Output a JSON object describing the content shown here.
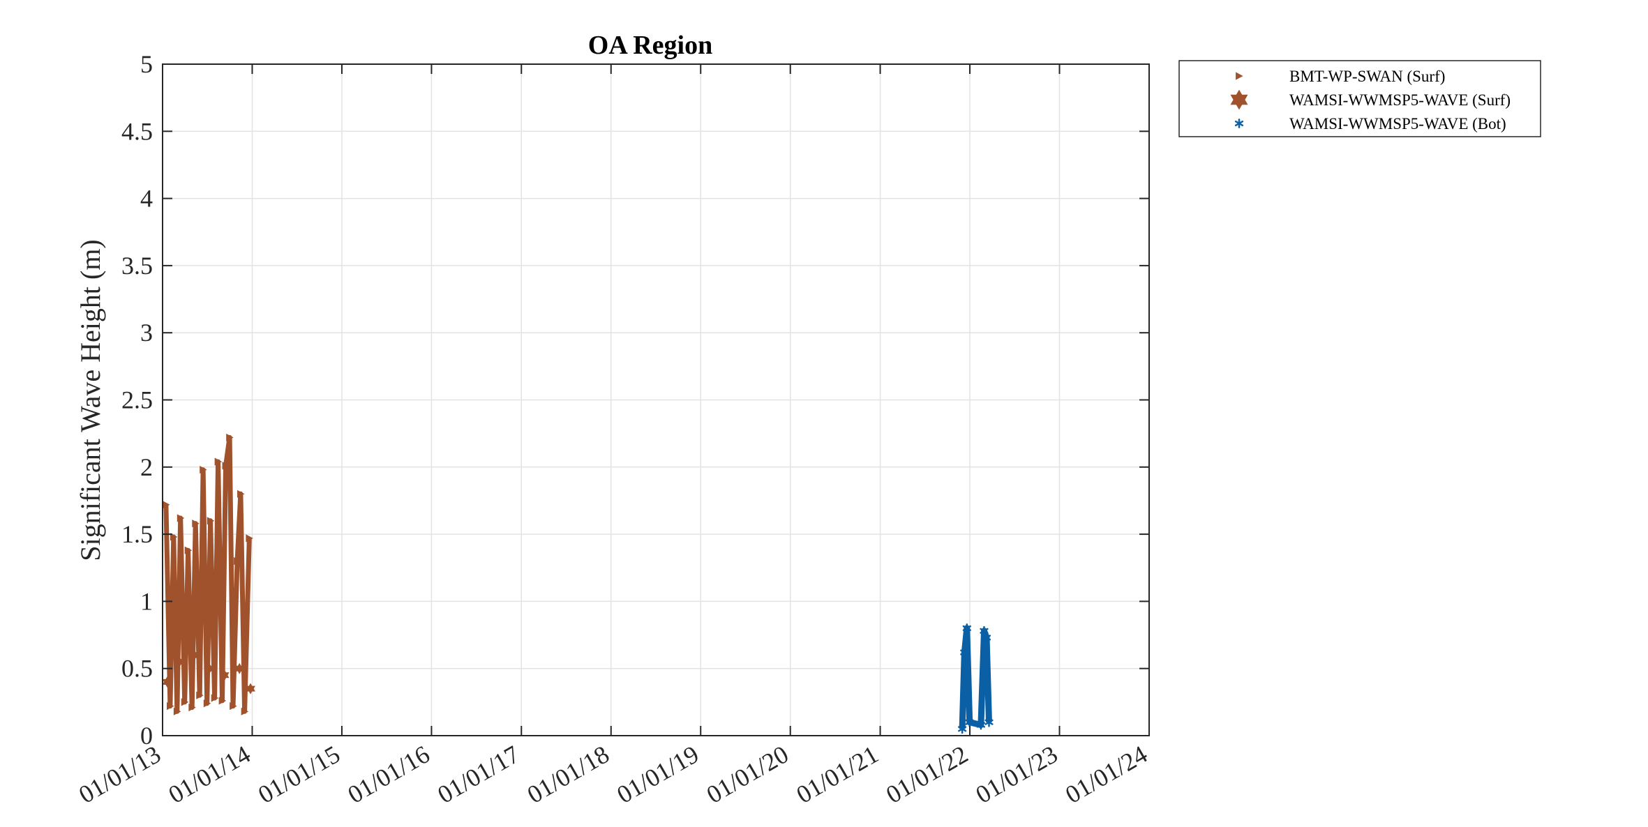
{
  "chart_data": {
    "type": "scatter",
    "title": "OA Region",
    "xlabel": "",
    "ylabel": "Significant Wave Height (m)",
    "x_tick_labels": [
      "01/01/13",
      "01/01/14",
      "01/01/15",
      "01/01/16",
      "01/01/17",
      "01/01/18",
      "01/01/19",
      "01/01/20",
      "01/01/21",
      "01/01/22",
      "01/01/23",
      "01/01/24"
    ],
    "x_tick_dates": [
      "2013-01-01",
      "2014-01-01",
      "2015-01-01",
      "2016-01-01",
      "2017-01-01",
      "2018-01-01",
      "2019-01-01",
      "2020-01-01",
      "2021-01-01",
      "2022-01-01",
      "2023-01-01",
      "2024-01-01"
    ],
    "xlim": [
      "2013-01-01",
      "2024-01-01"
    ],
    "y_tick_labels": [
      "0",
      "0.5",
      "1",
      "1.5",
      "2",
      "2.5",
      "3",
      "3.5",
      "4",
      "4.5",
      "5"
    ],
    "ylim": [
      0,
      5
    ],
    "grid": true,
    "legend_position": "outside-top-right",
    "series": [
      {
        "name": "BMT-WP-SWAN (Surf)",
        "marker": "triangle-right",
        "color": "#A0522D",
        "points": [
          {
            "x": "2013-01-15",
            "y": 1.72
          },
          {
            "x": "2013-02-01",
            "y": 0.22
          },
          {
            "x": "2013-02-15",
            "y": 1.48
          },
          {
            "x": "2013-03-01",
            "y": 0.18
          },
          {
            "x": "2013-03-15",
            "y": 1.62
          },
          {
            "x": "2013-04-01",
            "y": 0.25
          },
          {
            "x": "2013-04-15",
            "y": 1.38
          },
          {
            "x": "2013-05-01",
            "y": 0.21
          },
          {
            "x": "2013-05-15",
            "y": 1.58
          },
          {
            "x": "2013-06-01",
            "y": 0.3
          },
          {
            "x": "2013-06-15",
            "y": 1.98
          },
          {
            "x": "2013-07-01",
            "y": 0.24
          },
          {
            "x": "2013-07-15",
            "y": 1.6
          },
          {
            "x": "2013-08-01",
            "y": 0.28
          },
          {
            "x": "2013-08-15",
            "y": 2.04
          },
          {
            "x": "2013-09-01",
            "y": 0.26
          },
          {
            "x": "2013-09-15",
            "y": 2.01
          },
          {
            "x": "2013-10-01",
            "y": 2.22
          },
          {
            "x": "2013-10-15",
            "y": 0.22
          },
          {
            "x": "2013-11-01",
            "y": 1.3
          },
          {
            "x": "2013-11-15",
            "y": 1.8
          },
          {
            "x": "2013-12-01",
            "y": 0.18
          },
          {
            "x": "2013-12-20",
            "y": 1.47
          }
        ]
      },
      {
        "name": "WAMSI-WWMSP5-WAVE (Surf)",
        "marker": "hexagram",
        "color": "#A0522D",
        "points": [
          {
            "x": "2013-01-20",
            "y": 0.4
          },
          {
            "x": "2013-03-10",
            "y": 0.55
          },
          {
            "x": "2013-05-10",
            "y": 0.6
          },
          {
            "x": "2013-07-10",
            "y": 0.5
          },
          {
            "x": "2013-09-10",
            "y": 0.45
          },
          {
            "x": "2013-11-10",
            "y": 0.5
          },
          {
            "x": "2013-12-25",
            "y": 0.35
          }
        ]
      },
      {
        "name": "WAMSI-WWMSP5-WAVE (Bot)",
        "marker": "asterisk",
        "color": "#0B5FA5",
        "points": [
          {
            "x": "2021-12-01",
            "y": 0.05
          },
          {
            "x": "2021-12-10",
            "y": 0.62
          },
          {
            "x": "2021-12-20",
            "y": 0.8
          },
          {
            "x": "2021-12-31",
            "y": 0.1
          },
          {
            "x": "2022-02-15",
            "y": 0.08
          },
          {
            "x": "2022-02-28",
            "y": 0.78
          },
          {
            "x": "2022-03-10",
            "y": 0.73
          },
          {
            "x": "2022-03-20",
            "y": 0.1
          }
        ]
      }
    ]
  }
}
